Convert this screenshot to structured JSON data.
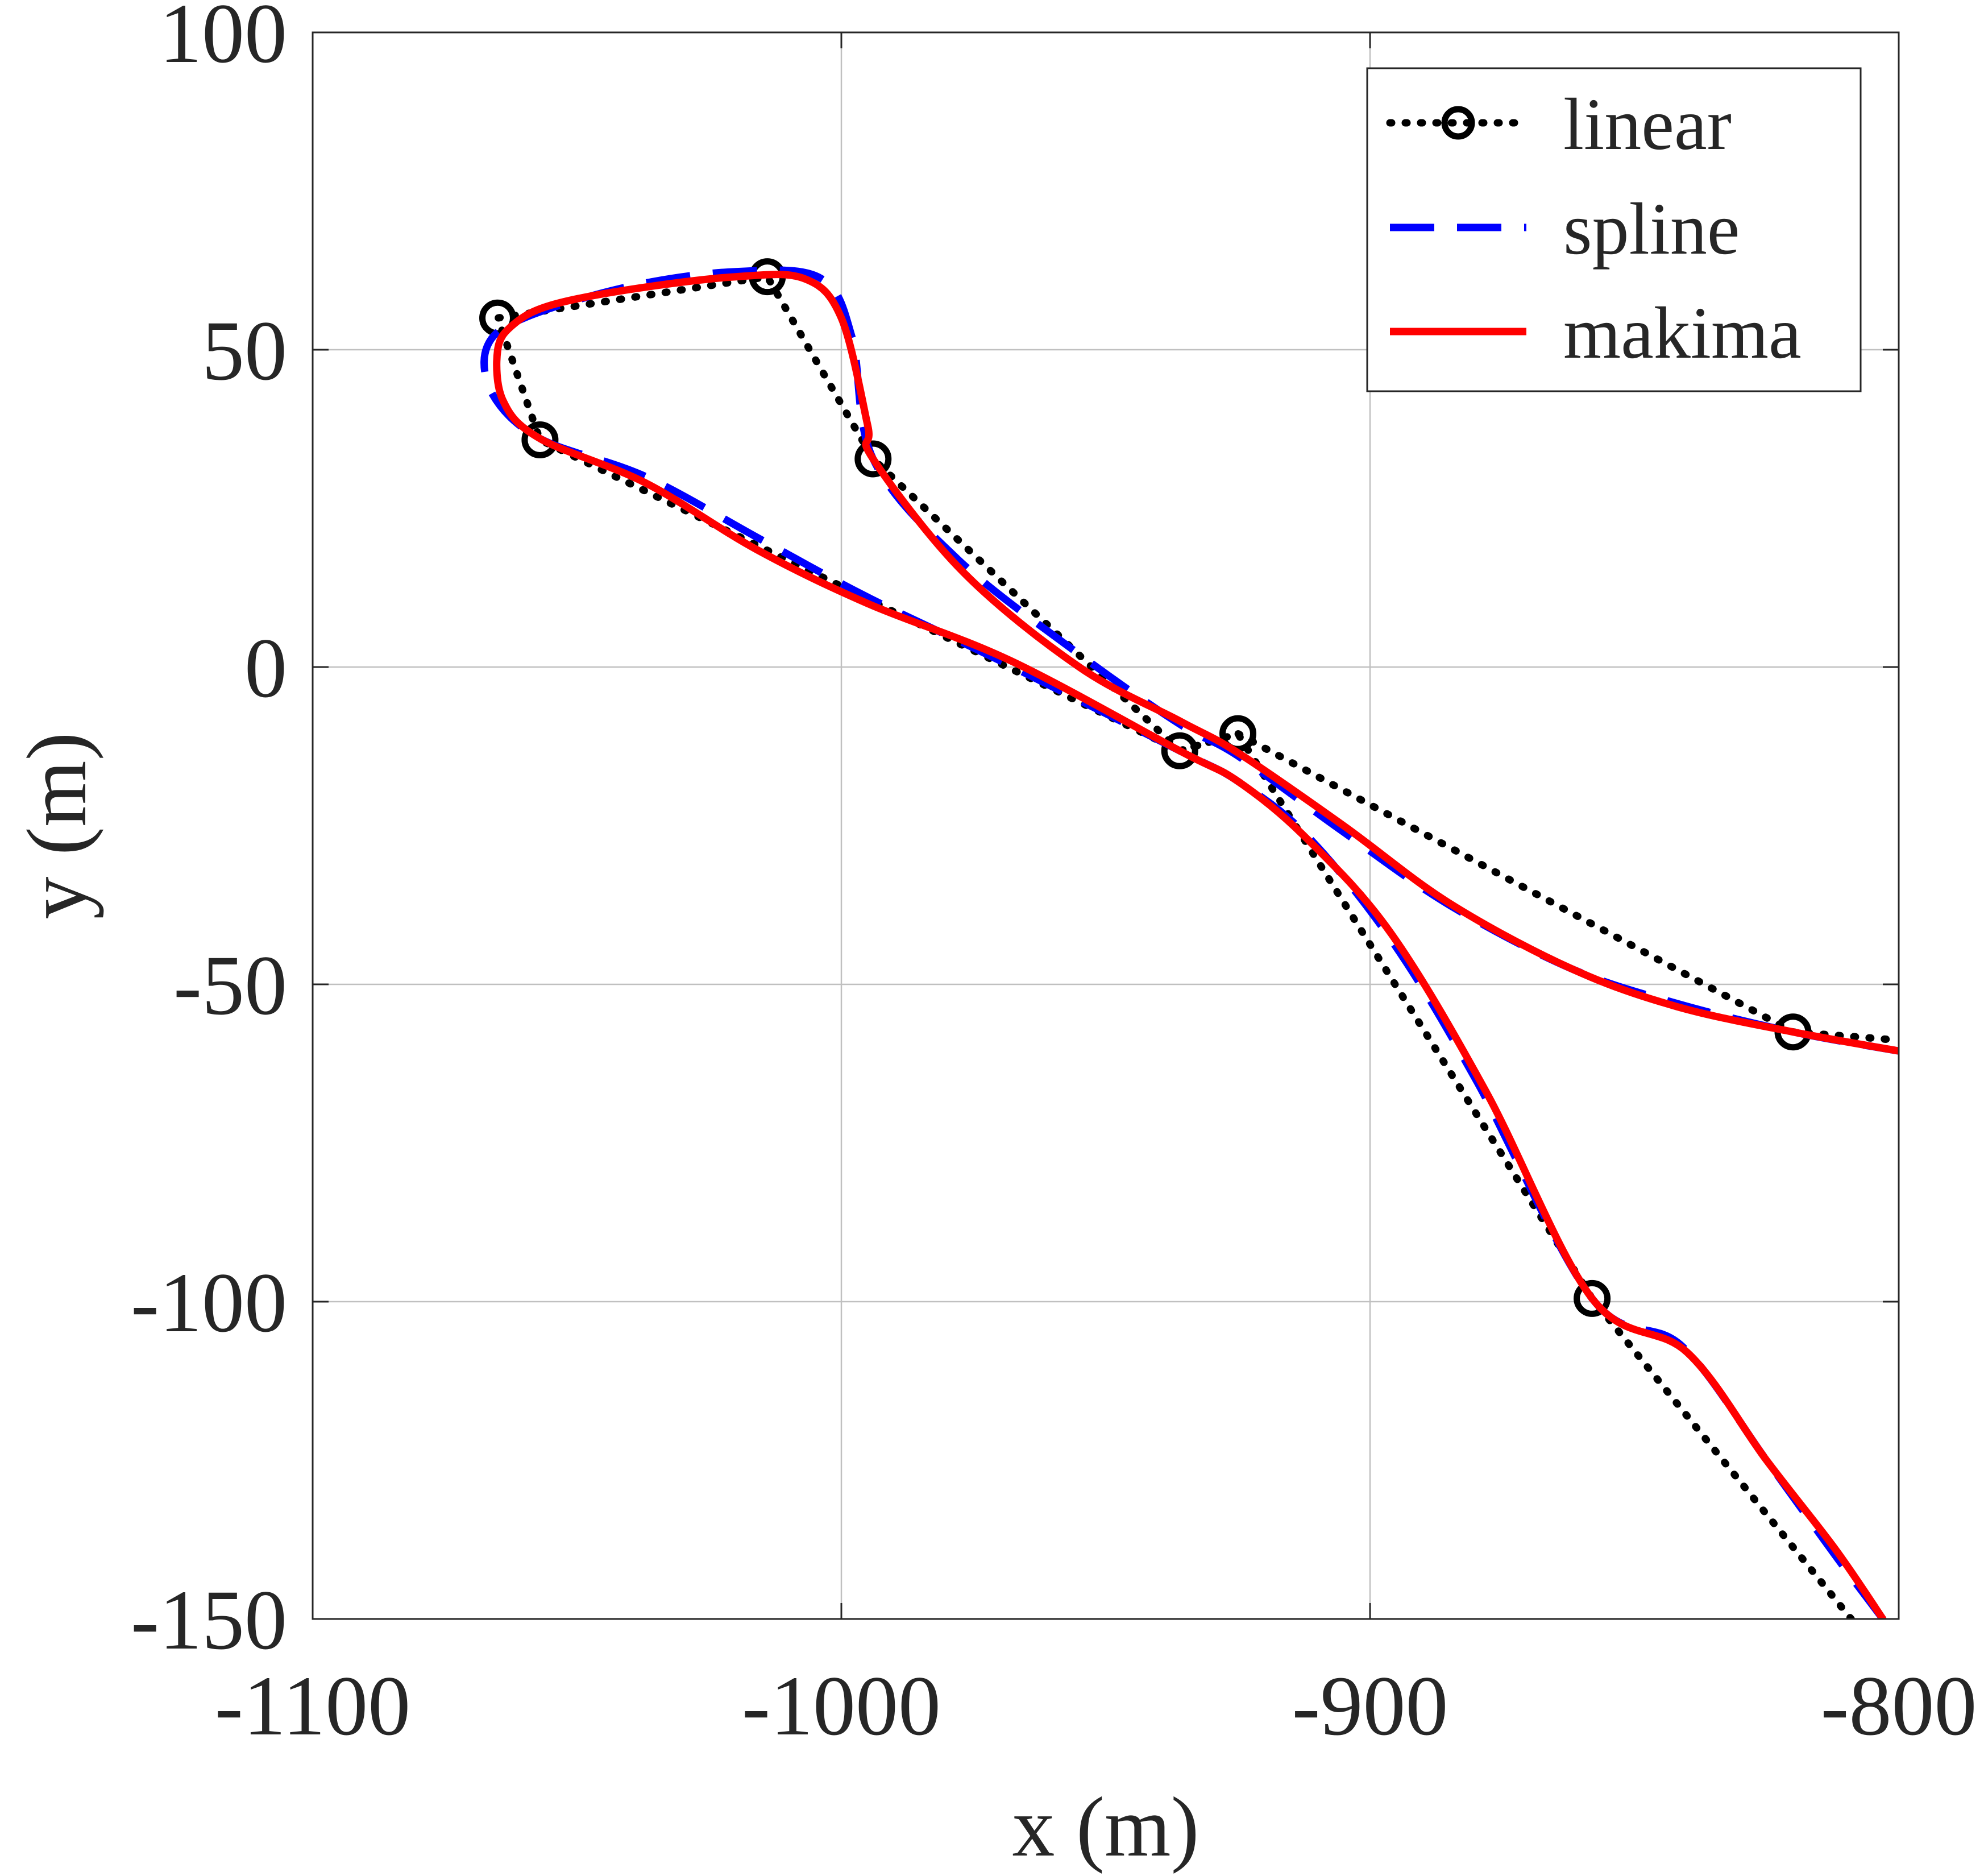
{
  "chart_data": {
    "type": "line",
    "title": "",
    "xlabel": "x (m)",
    "ylabel": "y (m)",
    "xlim": [
      -1100,
      -800
    ],
    "ylim": [
      -150,
      100
    ],
    "xticks": [
      -1100,
      -1000,
      -900,
      -800
    ],
    "yticks": [
      -150,
      -100,
      -50,
      0,
      50,
      100
    ],
    "xtick_labels": [
      "-1100",
      "-1000",
      "-900",
      "-800"
    ],
    "ytick_labels": [
      "-150",
      "-100",
      "-50",
      "0",
      "50",
      "100"
    ],
    "grid": true,
    "legend_position": "top-right",
    "series": [
      {
        "name": "linear",
        "style": "dotted-with-circles",
        "color": "#000000",
        "markers": [
          [
            -820,
            -57.5
          ],
          [
            -858,
            -99.5
          ],
          [
            -925,
            -10.5
          ],
          [
            -936,
            -13.2
          ],
          [
            -1057,
            35.8
          ],
          [
            -1065,
            55
          ],
          [
            -1014,
            61.5
          ],
          [
            -994,
            32.8
          ]
        ],
        "points": [
          [
            -809,
            -150
          ],
          [
            -858,
            -99.5
          ],
          [
            -925,
            -10.5
          ],
          [
            -936,
            -13.2
          ],
          [
            -1057,
            35.8
          ],
          [
            -1065,
            55
          ],
          [
            -1014,
            61.5
          ],
          [
            -994,
            32.8
          ],
          [
            -936,
            -13.2
          ],
          [
            -925,
            -10.5
          ],
          [
            -820,
            -57.5
          ],
          [
            -800,
            -58.8
          ]
        ]
      },
      {
        "name": "spline",
        "style": "dashed",
        "color": "#0000ff",
        "points": [
          [
            -803,
            -150
          ],
          [
            -812,
            -140
          ],
          [
            -825,
            -125
          ],
          [
            -841,
            -107
          ],
          [
            -858,
            -99.5
          ],
          [
            -880,
            -65
          ],
          [
            -896,
            -43
          ],
          [
            -912,
            -26.5
          ],
          [
            -925,
            -18
          ],
          [
            -936,
            -13.2
          ],
          [
            -970,
            1
          ],
          [
            -995,
            11
          ],
          [
            -1015,
            20
          ],
          [
            -1037,
            30
          ],
          [
            -1057,
            36
          ],
          [
            -1066,
            43
          ],
          [
            -1067,
            50.5
          ],
          [
            -1060,
            55
          ],
          [
            -1040,
            60
          ],
          [
            -1020,
            62.3
          ],
          [
            -1004,
            61.3
          ],
          [
            -998,
            52
          ],
          [
            -994,
            32.8
          ],
          [
            -978,
            17
          ],
          [
            -955,
            2
          ],
          [
            -936,
            -9
          ],
          [
            -925,
            -14
          ],
          [
            -905,
            -26
          ],
          [
            -885,
            -37.5
          ],
          [
            -862,
            -47.5
          ],
          [
            -842,
            -53
          ],
          [
            -820,
            -57.5
          ],
          [
            -800,
            -60.5
          ]
        ]
      },
      {
        "name": "makima",
        "style": "solid",
        "color": "#ff0000",
        "points": [
          [
            -803,
            -150
          ],
          [
            -812,
            -139
          ],
          [
            -825,
            -125
          ],
          [
            -840,
            -108
          ],
          [
            -858,
            -99.5
          ],
          [
            -878,
            -67
          ],
          [
            -896,
            -42
          ],
          [
            -912,
            -27
          ],
          [
            -925,
            -18
          ],
          [
            -936,
            -13.2
          ],
          [
            -968,
            1
          ],
          [
            -995,
            10
          ],
          [
            -1016,
            18.5
          ],
          [
            -1037,
            29
          ],
          [
            -1057,
            36
          ],
          [
            -1064,
            42
          ],
          [
            -1065,
            50
          ],
          [
            -1062,
            54
          ],
          [
            -1055,
            57
          ],
          [
            -1040,
            59.5
          ],
          [
            -1020,
            61.5
          ],
          [
            -1007,
            61.2
          ],
          [
            -1000,
            55
          ],
          [
            -995,
            38
          ],
          [
            -994,
            32.8
          ],
          [
            -977,
            15
          ],
          [
            -955,
            0
          ],
          [
            -936,
            -8.5
          ],
          [
            -925,
            -13.5
          ],
          [
            -905,
            -25
          ],
          [
            -885,
            -37.2
          ],
          [
            -862,
            -47.5
          ],
          [
            -842,
            -53.5
          ],
          [
            -820,
            -57.5
          ],
          [
            -800,
            -60.5
          ]
        ]
      }
    ]
  }
}
